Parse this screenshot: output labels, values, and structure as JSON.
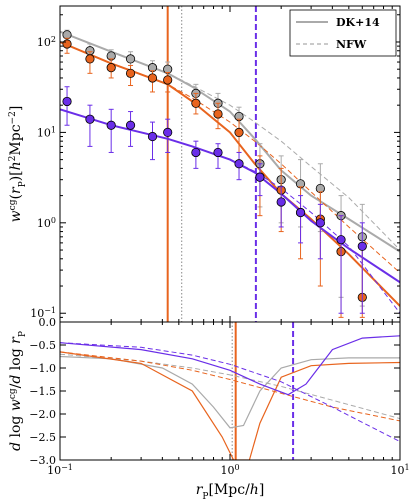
{
  "chart_data": [
    {
      "type": "line",
      "panel": "top",
      "ylabel": "w^cg(r_P)[h^2 Mpc^-2]",
      "xscale": "log",
      "yscale": "log",
      "xlim": [
        0.1,
        10
      ],
      "ylim": [
        0.08,
        250
      ],
      "x_ticks": [
        0.1,
        1,
        10
      ],
      "y_ticks": [
        0.1,
        1,
        10,
        100
      ],
      "x_tick_labels": [
        "10^-1",
        "10^0",
        "10^1"
      ],
      "y_tick_labels": [
        "10^-1",
        "10^0",
        "10^1",
        "10^2"
      ],
      "legend": {
        "placement": "top-right",
        "entries": [
          {
            "label": "DK+14",
            "style": "solid",
            "color": "#aaaaaa"
          },
          {
            "label": "NFW",
            "style": "dashed",
            "color": "#aaaaaa"
          }
        ]
      },
      "vlines": [
        {
          "x": 0.43,
          "color": "#e8641e",
          "style": "solid"
        },
        {
          "x": 0.52,
          "color": "#888888",
          "style": "dotted"
        },
        {
          "x": 1.42,
          "color": "#6a2ee8",
          "style": "dashed"
        }
      ],
      "series": [
        {
          "color": "#aaaaaa",
          "points": [
            {
              "x": 0.11,
              "y": 120,
              "lo": 95,
              "hi": 135
            },
            {
              "x": 0.15,
              "y": 80,
              "lo": 60,
              "hi": 95
            },
            {
              "x": 0.2,
              "y": 70,
              "lo": 52,
              "hi": 82
            },
            {
              "x": 0.26,
              "y": 65,
              "lo": 48,
              "hi": 78
            },
            {
              "x": 0.35,
              "y": 52,
              "lo": 40,
              "hi": 62
            },
            {
              "x": 0.43,
              "y": 50,
              "lo": 38,
              "hi": 60
            },
            {
              "x": 0.63,
              "y": 27,
              "lo": 20,
              "hi": 34
            },
            {
              "x": 0.85,
              "y": 21,
              "lo": 15,
              "hi": 27
            },
            {
              "x": 1.13,
              "y": 15,
              "lo": 9,
              "hi": 19
            },
            {
              "x": 1.5,
              "y": 4.5,
              "lo": 1.5,
              "hi": 7.5
            },
            {
              "x": 2.0,
              "y": 3.0,
              "lo": 1.0,
              "hi": 5.5
            },
            {
              "x": 2.6,
              "y": 2.7,
              "lo": 0.9,
              "hi": 5.0
            },
            {
              "x": 3.4,
              "y": 2.4,
              "lo": 0.8,
              "hi": 4.5
            },
            {
              "x": 4.5,
              "y": 1.2,
              "lo": 0.15,
              "hi": 2.0
            },
            {
              "x": 6.0,
              "y": 0.7,
              "lo": 0.12,
              "hi": 1.6
            }
          ],
          "fit_solid": [
            [
              0.1,
              130
            ],
            [
              0.2,
              78
            ],
            [
              0.43,
              45
            ],
            [
              0.6,
              32
            ],
            [
              1.0,
              17
            ],
            [
              1.4,
              8.5
            ],
            [
              2,
              3.8
            ],
            [
              3,
              2.0
            ],
            [
              5,
              1.1
            ],
            [
              10,
              0.48
            ]
          ],
          "fit_dashed": [
            [
              0.1,
              130
            ],
            [
              0.2,
              78
            ],
            [
              0.43,
              45
            ],
            [
              0.6,
              33
            ],
            [
              1.0,
              20
            ],
            [
              1.4,
              13
            ],
            [
              2,
              8
            ],
            [
              3,
              4.2
            ],
            [
              5,
              1.9
            ],
            [
              10,
              0.5
            ]
          ]
        },
        {
          "color": "#e8641e",
          "points": [
            {
              "x": 0.11,
              "y": 95,
              "lo": 75,
              "hi": 110
            },
            {
              "x": 0.15,
              "y": 65,
              "lo": 45,
              "hi": 78
            },
            {
              "x": 0.2,
              "y": 52,
              "lo": 40,
              "hi": 65
            },
            {
              "x": 0.26,
              "y": 45,
              "lo": 33,
              "hi": 55
            },
            {
              "x": 0.35,
              "y": 40,
              "lo": 28,
              "hi": 48
            },
            {
              "x": 0.43,
              "y": 38,
              "lo": 28,
              "hi": 46
            },
            {
              "x": 0.63,
              "y": 21,
              "lo": 16,
              "hi": 27
            },
            {
              "x": 0.85,
              "y": 16,
              "lo": 11,
              "hi": 21
            },
            {
              "x": 1.13,
              "y": 10,
              "lo": 6,
              "hi": 14
            },
            {
              "x": 1.5,
              "y": 3.2,
              "lo": 1.2,
              "hi": 5.5
            },
            {
              "x": 2.0,
              "y": 2.3,
              "lo": 0.8,
              "hi": 4.0
            },
            {
              "x": 2.6,
              "y": 1.3,
              "lo": 0.4,
              "hi": 2.5
            },
            {
              "x": 3.4,
              "y": 1.1,
              "lo": 0.2,
              "hi": 2.2
            },
            {
              "x": 4.5,
              "y": 0.48,
              "lo": 0.09,
              "hi": 1.2
            },
            {
              "x": 6.0,
              "y": 0.15,
              "lo": 0.09,
              "hi": 0.6
            }
          ],
          "fit_solid": [
            [
              0.1,
              100
            ],
            [
              0.2,
              58
            ],
            [
              0.43,
              34
            ],
            [
              0.6,
              22
            ],
            [
              1.0,
              10
            ],
            [
              1.4,
              4.5
            ],
            [
              2,
              2.1
            ],
            [
              3,
              1.1
            ],
            [
              5,
              0.45
            ],
            [
              10,
              0.12
            ]
          ],
          "fit_dashed": [
            [
              0.1,
              100
            ],
            [
              0.2,
              58
            ],
            [
              0.43,
              34
            ],
            [
              0.6,
              24
            ],
            [
              1.0,
              13
            ],
            [
              1.4,
              8
            ],
            [
              2,
              4.5
            ],
            [
              3,
              2.2
            ],
            [
              5,
              0.9
            ],
            [
              10,
              0.28
            ]
          ]
        },
        {
          "color": "#6a2ee8",
          "points": [
            {
              "x": 0.11,
              "y": 22,
              "lo": 12,
              "hi": 32
            },
            {
              "x": 0.15,
              "y": 14,
              "lo": 7,
              "hi": 20
            },
            {
              "x": 0.2,
              "y": 12,
              "lo": 6,
              "hi": 18
            },
            {
              "x": 0.26,
              "y": 12,
              "lo": 7,
              "hi": 17
            },
            {
              "x": 0.35,
              "y": 9,
              "lo": 5,
              "hi": 13
            },
            {
              "x": 0.43,
              "y": 10,
              "lo": 6,
              "hi": 14
            },
            {
              "x": 0.63,
              "y": 6,
              "lo": 4,
              "hi": 8
            },
            {
              "x": 0.85,
              "y": 6,
              "lo": 4,
              "hi": 7.5
            },
            {
              "x": 1.13,
              "y": 4.5,
              "lo": 3,
              "hi": 6
            },
            {
              "x": 1.5,
              "y": 3.2,
              "lo": 2,
              "hi": 4.5
            },
            {
              "x": 2.0,
              "y": 1.7,
              "lo": 0.9,
              "hi": 2.5
            },
            {
              "x": 2.6,
              "y": 1.3,
              "lo": 0.6,
              "hi": 2.0
            },
            {
              "x": 3.4,
              "y": 1.0,
              "lo": 0.4,
              "hi": 1.6
            },
            {
              "x": 4.5,
              "y": 0.65,
              "lo": 0.1,
              "hi": 1.2
            },
            {
              "x": 6.0,
              "y": 0.55,
              "lo": 0.1,
              "hi": 1.0
            }
          ],
          "fit_solid": [
            [
              0.1,
              18
            ],
            [
              0.2,
              12
            ],
            [
              0.43,
              8.5
            ],
            [
              0.6,
              7
            ],
            [
              1.0,
              5
            ],
            [
              1.4,
              3.6
            ],
            [
              2,
              2.1
            ],
            [
              3,
              1.05
            ],
            [
              5,
              0.52
            ],
            [
              10,
              0.22
            ]
          ],
          "fit_dashed": [
            [
              0.1,
              18
            ],
            [
              0.2,
              12
            ],
            [
              0.43,
              8.5
            ],
            [
              0.6,
              7
            ],
            [
              1.0,
              5
            ],
            [
              1.4,
              3.7
            ],
            [
              2,
              2.4
            ],
            [
              3,
              1.3
            ],
            [
              5,
              0.55
            ],
            [
              10,
              0.1
            ]
          ]
        }
      ]
    },
    {
      "type": "line",
      "panel": "bottom",
      "xlabel": "r_P[Mpc/h]",
      "ylabel": "d log w^cg / d log r_P",
      "xscale": "log",
      "xlim": [
        0.1,
        10
      ],
      "ylim": [
        -3.0,
        0.0
      ],
      "x_ticks": [
        0.1,
        1,
        10
      ],
      "y_ticks": [
        -3.0,
        -2.5,
        -2.0,
        -1.5,
        -1.0,
        -0.5,
        0.0
      ],
      "x_tick_labels": [
        "10^-1",
        "10^0",
        "10^1"
      ],
      "y_tick_labels": [
        "−3.0",
        "−2.5",
        "−2.0",
        "−1.5",
        "−1.0",
        "−0.5",
        "0.0"
      ],
      "vlines": [
        {
          "x": 1.08,
          "color": "#e8641e",
          "style": "solid"
        },
        {
          "x": 1.03,
          "color": "#888888",
          "style": "dotted"
        },
        {
          "x": 2.35,
          "color": "#6a2ee8",
          "style": "dashed"
        }
      ],
      "series": [
        {
          "color": "#aaaaaa",
          "solid": [
            [
              0.1,
              -0.75
            ],
            [
              0.2,
              -0.8
            ],
            [
              0.4,
              -1.0
            ],
            [
              0.6,
              -1.35
            ],
            [
              0.8,
              -1.85
            ],
            [
              1.0,
              -2.3
            ],
            [
              1.2,
              -2.25
            ],
            [
              1.5,
              -1.5
            ],
            [
              2.0,
              -1.0
            ],
            [
              3.0,
              -0.82
            ],
            [
              5,
              -0.78
            ],
            [
              10,
              -0.78
            ]
          ],
          "dashed": [
            [
              0.1,
              -0.7
            ],
            [
              0.3,
              -0.85
            ],
            [
              0.6,
              -1.0
            ],
            [
              1.0,
              -1.15
            ],
            [
              2,
              -1.4
            ],
            [
              4,
              -1.7
            ],
            [
              10,
              -2.1
            ]
          ]
        },
        {
          "color": "#e8641e",
          "solid": [
            [
              0.1,
              -0.65
            ],
            [
              0.3,
              -0.9
            ],
            [
              0.6,
              -1.5
            ],
            [
              0.9,
              -2.5
            ],
            [
              1.05,
              -3.0
            ],
            [
              1.3,
              -3.0
            ],
            [
              1.5,
              -2.2
            ],
            [
              2.0,
              -1.2
            ],
            [
              3.0,
              -0.95
            ],
            [
              5,
              -0.9
            ],
            [
              10,
              -0.88
            ]
          ],
          "dashed": [
            [
              0.1,
              -0.65
            ],
            [
              0.3,
              -0.85
            ],
            [
              0.6,
              -1.05
            ],
            [
              1.0,
              -1.25
            ],
            [
              2,
              -1.55
            ],
            [
              4,
              -1.85
            ],
            [
              10,
              -2.15
            ]
          ]
        },
        {
          "color": "#6a2ee8",
          "solid": [
            [
              0.1,
              -0.45
            ],
            [
              0.3,
              -0.6
            ],
            [
              0.6,
              -0.8
            ],
            [
              1.0,
              -1.05
            ],
            [
              1.5,
              -1.35
            ],
            [
              2.2,
              -1.58
            ],
            [
              2.8,
              -1.35
            ],
            [
              4,
              -0.6
            ],
            [
              6,
              -0.35
            ],
            [
              10,
              -0.3
            ]
          ],
          "dashed": [
            [
              0.1,
              -0.45
            ],
            [
              0.3,
              -0.55
            ],
            [
              0.6,
              -0.72
            ],
            [
              1.0,
              -0.92
            ],
            [
              2,
              -1.3
            ],
            [
              4,
              -1.85
            ],
            [
              10,
              -2.6
            ]
          ]
        }
      ]
    }
  ]
}
